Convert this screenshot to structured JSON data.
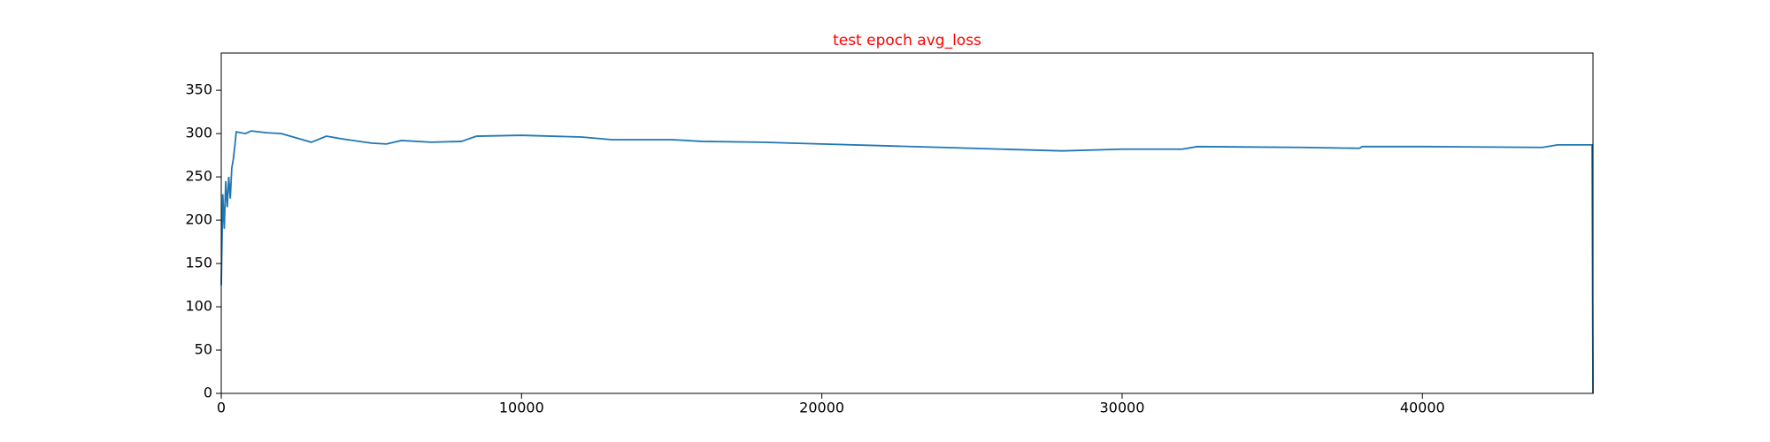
{
  "chart_data": {
    "type": "line",
    "title": "test epoch avg_loss",
    "title_color": "#ff0000",
    "x": [
      0,
      50,
      100,
      150,
      200,
      250,
      300,
      350,
      400,
      450,
      500,
      800,
      1000,
      1500,
      2000,
      2500,
      3000,
      3500,
      4000,
      5000,
      5500,
      6000,
      7000,
      8000,
      8500,
      10000,
      12000,
      13000,
      15000,
      16000,
      18000,
      20000,
      22000,
      24000,
      26000,
      28000,
      30000,
      32000,
      32500,
      36000,
      37900,
      38000,
      40000,
      44000,
      44500,
      45650,
      45680
    ],
    "series": [
      {
        "name": "avg_loss",
        "color": "#1f77b4",
        "values": [
          125,
          230,
          190,
          245,
          215,
          250,
          225,
          260,
          270,
          285,
          302,
          300,
          303,
          301,
          300,
          295,
          290,
          297,
          294,
          289,
          288,
          292,
          290,
          291,
          297,
          298,
          296,
          293,
          293,
          291,
          290,
          288,
          286,
          284,
          282,
          280,
          282,
          282,
          285,
          284,
          283,
          285,
          285,
          284,
          287,
          287,
          0
        ]
      }
    ],
    "xlim": [
      0,
      45680
    ],
    "ylim": [
      0,
      393
    ],
    "xticks": [
      0,
      10000,
      20000,
      30000,
      40000
    ],
    "yticks": [
      0,
      50,
      100,
      150,
      200,
      250,
      300,
      350
    ],
    "grid": false
  }
}
